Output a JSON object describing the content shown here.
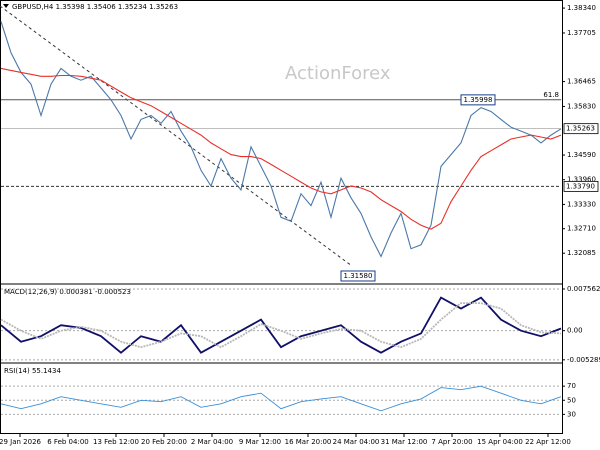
{
  "chart_data": [
    {
      "type": "line",
      "title": "GBPUSD,H4 1.35398 1.35406 1.35234 1.35263",
      "watermark": "ActionForex",
      "xtick_labels": [
        "29 Jan 2026",
        "6 Feb 04:00",
        "13 Feb 12:00",
        "20 Feb 20:00",
        "2 Mar 04:00",
        "9 Mar 12:00",
        "16 Mar 20:00",
        "24 Mar 04:00",
        "31 Mar 12:00",
        "7 Apr 20:00",
        "15 Apr 04:00",
        "22 Apr 12:00"
      ],
      "ylim": [
        1.3135,
        1.3847
      ],
      "yticks": [
        {
          "value": 1.3834,
          "label": "1.38340"
        },
        {
          "value": 1.37705,
          "label": "1.37705"
        },
        {
          "value": 1.36465,
          "label": "1.36465"
        },
        {
          "value": 1.3583,
          "label": "1.35830"
        },
        {
          "value": 1.3459,
          "label": "1.34590"
        },
        {
          "value": 1.3396,
          "label": "1.33960"
        },
        {
          "value": 1.3333,
          "label": "1.33330"
        },
        {
          "value": 1.3271,
          "label": "1.32710"
        },
        {
          "value": 1.32085,
          "label": "1.32085"
        }
      ],
      "series": [
        {
          "color": "#4a78a8",
          "values": [
            1.38,
            1.372,
            1.367,
            1.364,
            1.356,
            1.364,
            1.368,
            1.366,
            1.365,
            1.366,
            1.363,
            1.36,
            1.356,
            1.35,
            1.355,
            1.356,
            1.354,
            1.357,
            1.352,
            1.348,
            1.342,
            1.338,
            1.345,
            1.34,
            1.337,
            1.348,
            1.343,
            1.338,
            1.33,
            1.329,
            1.336,
            1.333,
            1.339,
            1.33,
            1.34,
            1.335,
            1.331,
            1.325,
            1.32,
            1.326,
            1.331,
            1.322,
            1.323,
            1.328,
            1.343,
            1.346,
            1.349,
            1.356,
            1.358,
            1.357,
            1.355,
            1.353,
            1.352,
            1.351,
            1.349,
            1.351,
            1.3526
          ]
        },
        {
          "color": "#e8302a",
          "values": [
            1.368,
            1.3675,
            1.367,
            1.3665,
            1.366,
            1.366,
            1.3662,
            1.3662,
            1.366,
            1.3655,
            1.365,
            1.3635,
            1.362,
            1.3605,
            1.3595,
            1.3585,
            1.357,
            1.3555,
            1.354,
            1.3525,
            1.351,
            1.349,
            1.3475,
            1.346,
            1.3455,
            1.3455,
            1.345,
            1.3435,
            1.342,
            1.3405,
            1.339,
            1.3375,
            1.3365,
            1.336,
            1.337,
            1.338,
            1.3375,
            1.3365,
            1.3345,
            1.333,
            1.3315,
            1.3295,
            1.328,
            1.327,
            1.3285,
            1.334,
            1.338,
            1.342,
            1.3455,
            1.347,
            1.3485,
            1.35,
            1.3505,
            1.351,
            1.3505,
            1.35,
            1.351
          ]
        }
      ],
      "levels": [
        {
          "value": 1.36,
          "label": "61.8"
        }
      ],
      "price_tags": [
        {
          "value": 1.35263,
          "label": "1.35263",
          "color": "#999999"
        },
        {
          "value": 1.3379,
          "label": "1.33790",
          "color": "#333333"
        }
      ],
      "callouts": [
        {
          "value": 1.35998,
          "label": "1.35998"
        },
        {
          "value": 1.3158,
          "label": "1.31580"
        }
      ]
    },
    {
      "type": "line",
      "title": "MACD(12,26,9) 0.000381 -0.000523",
      "ylim": [
        -0.0055,
        0.0081
      ],
      "yticks": [
        0.007562,
        {
          "value": 0,
          "label": "0.00"
        },
        -0.005289
      ],
      "series": [
        {
          "color": "#10106a",
          "values": [
            0.001,
            -0.002,
            -0.001,
            0.001,
            0.0005,
            -0.001,
            -0.004,
            -0.001,
            -0.002,
            0.001,
            -0.004,
            -0.002,
            0.0,
            0.002,
            -0.003,
            -0.001,
            0.0,
            0.001,
            -0.002,
            -0.004,
            -0.002,
            -0.0005,
            0.006,
            0.004,
            0.006,
            0.002,
            0.0,
            -0.001,
            0.0004
          ]
        },
        {
          "color": "#b8b8b8",
          "values": [
            0.002,
            0.0,
            -0.0015,
            0.0,
            0.0007,
            0.0,
            -0.002,
            -0.003,
            -0.002,
            -0.0005,
            -0.001,
            -0.003,
            -0.001,
            0.0012,
            0.0,
            -0.0015,
            -0.0005,
            0.0003,
            0.0,
            -0.002,
            -0.003,
            -0.0015,
            0.002,
            0.005,
            0.005,
            0.004,
            0.001,
            -0.0003,
            -0.0005
          ]
        }
      ]
    },
    {
      "type": "line",
      "title": "RSI(14) 55.1434",
      "ylim": [
        5,
        100
      ],
      "yticks": [
        70,
        50,
        30
      ],
      "series": [
        {
          "color": "#3a8fd8",
          "values": [
            45,
            38,
            45,
            55,
            50,
            45,
            40,
            50,
            48,
            55,
            40,
            45,
            55,
            60,
            38,
            48,
            52,
            55,
            45,
            35,
            45,
            52,
            68,
            65,
            70,
            60,
            50,
            45,
            55
          ]
        }
      ]
    }
  ]
}
